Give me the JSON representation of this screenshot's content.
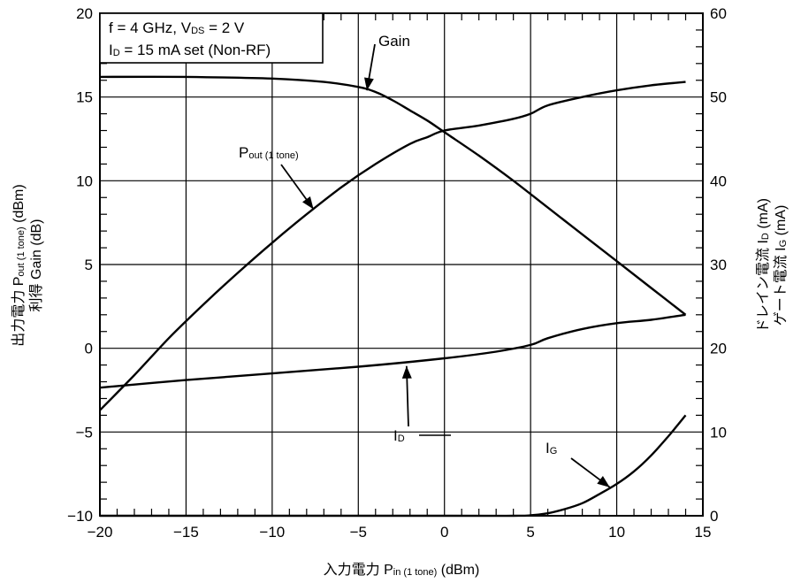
{
  "chart_data": {
    "type": "line",
    "x_axis": {
      "label_main": "入力電力  P",
      "label_sub": "in (1 tone)",
      "label_unit": " (dBm)",
      "range": [
        -20,
        15
      ],
      "major_ticks": [
        -20,
        -15,
        -10,
        -5,
        0,
        5,
        10,
        15
      ],
      "tick_labels": [
        "−20",
        "−15",
        "−10",
        "−5",
        "0",
        "5",
        "10",
        "15"
      ]
    },
    "y_left": {
      "line1_main": "出力電力  P",
      "line1_sub": "out (1 tone)",
      "line1_unit": " (dBm)",
      "line2": "利得  Gain (dB)",
      "range": [
        -10,
        20
      ],
      "major_ticks": [
        -10,
        -5,
        0,
        5,
        10,
        15,
        20
      ],
      "tick_labels": [
        "−10",
        "−5",
        "0",
        "5",
        "10",
        "15",
        "20"
      ]
    },
    "y_right": {
      "line1_main": "ドレイン電流  I",
      "line1_sub": "D",
      "line1_unit": " (mA)",
      "line2_main": "ゲート電流  I",
      "line2_sub": "G",
      "line2_unit": " (mA)",
      "range": [
        0,
        60
      ],
      "major_ticks": [
        0,
        10,
        20,
        30,
        40,
        50,
        60
      ],
      "tick_labels": [
        "0",
        "10",
        "20",
        "30",
        "40",
        "50",
        "60"
      ]
    },
    "conditions": {
      "line1_a": "f = 4 GHz, V",
      "line1_sub": "DS",
      "line1_b": " = 2 V",
      "line2_a": "I",
      "line2_sub": "D",
      "line2_b": " = 15 mA set (Non-RF)"
    },
    "series": [
      {
        "name": "Gain",
        "axis": "left",
        "x": [
          -20,
          -15,
          -10,
          -7,
          -5,
          -4,
          -3,
          -2,
          -1,
          0,
          2,
          4,
          6,
          8,
          10,
          12,
          14
        ],
        "y": [
          16.2,
          16.2,
          16.1,
          15.9,
          15.6,
          15.3,
          14.8,
          14.2,
          13.6,
          12.9,
          11.5,
          10.0,
          8.4,
          6.8,
          5.2,
          3.6,
          2.0
        ]
      },
      {
        "name": "P",
        "name_sub": "out (1 tone)",
        "axis": "left",
        "x": [
          -20,
          -18,
          -16,
          -14,
          -12,
          -10,
          -8,
          -6,
          -4,
          -2,
          -1,
          0,
          2,
          4,
          5,
          6,
          8,
          10,
          12,
          14
        ],
        "y": [
          -3.7,
          -1.6,
          0.6,
          2.6,
          4.5,
          6.3,
          8.0,
          9.6,
          11.0,
          12.2,
          12.6,
          13.0,
          13.3,
          13.7,
          14.0,
          14.5,
          15.0,
          15.4,
          15.7,
          15.9
        ]
      },
      {
        "name": "I",
        "name_sub": "D",
        "axis": "right",
        "x": [
          -20,
          -15,
          -10,
          -5,
          0,
          3,
          5,
          6,
          8,
          10,
          12,
          14
        ],
        "y": [
          15.3,
          16.2,
          17.0,
          17.8,
          18.8,
          19.6,
          20.4,
          21.2,
          22.3,
          23.0,
          23.4,
          24.0
        ]
      },
      {
        "name": "I",
        "name_sub": "G",
        "axis": "right",
        "x": [
          -20,
          0,
          4,
          5,
          6,
          7,
          8,
          9,
          10,
          11,
          12,
          13,
          14
        ],
        "y": [
          0,
          0,
          0,
          0.05,
          0.3,
          0.8,
          1.5,
          2.6,
          3.8,
          5.3,
          7.2,
          9.5,
          12.0
        ]
      }
    ],
    "grid": true,
    "legend": "none",
    "annotations": [
      {
        "text": "Gain",
        "series": "Gain",
        "arrow_to": [
          -4.5,
          15.5
        ]
      },
      {
        "text": "P",
        "sub": "out (1 tone)",
        "series": "Pout",
        "arrow_to": [
          -7.6,
          8.3
        ]
      },
      {
        "text": "I",
        "sub": "D",
        "series": "ID",
        "arrow_to": [
          -2.2,
          18.3
        ]
      },
      {
        "text": "I",
        "sub": "G",
        "series": "IG",
        "arrow_to": [
          9.6,
          3.4
        ]
      }
    ]
  }
}
